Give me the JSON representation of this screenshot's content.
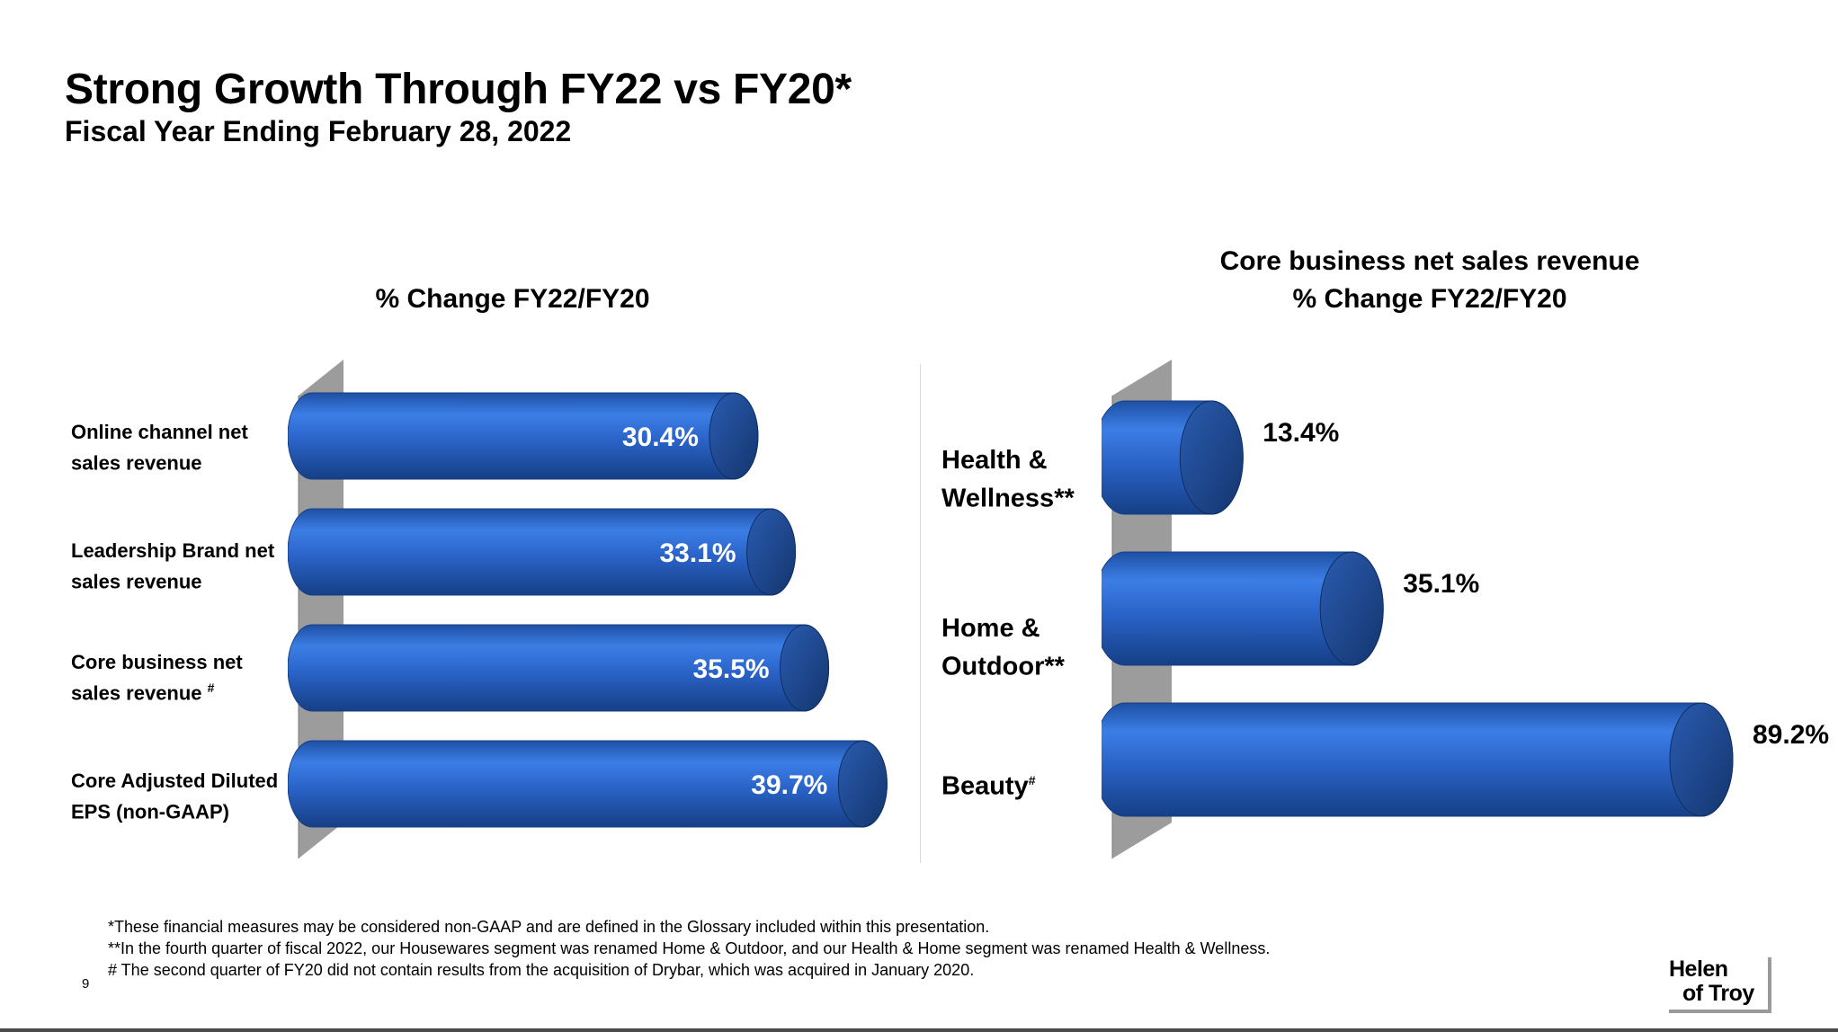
{
  "slide": {
    "title": "Strong Growth Through FY22 vs FY20*",
    "subtitle": "Fiscal Year Ending February 28, 2022",
    "page_number": "9"
  },
  "colors": {
    "bar": "#2f6fd6",
    "bar_dark": "#1c4a94",
    "wall": "#9c9c9c"
  },
  "left_chart": {
    "heading": "% Change FY22/FY20",
    "labels": [
      {
        "lines": [
          "Online channel net",
          "sales revenue"
        ],
        "sup": ""
      },
      {
        "lines": [
          "Leadership Brand net",
          "sales revenue"
        ],
        "sup": ""
      },
      {
        "lines": [
          "Core business net",
          "sales revenue"
        ],
        "sup": "#"
      },
      {
        "lines": [
          "Core Adjusted Diluted",
          "EPS (non-GAAP)"
        ],
        "sup": ""
      }
    ]
  },
  "right_chart": {
    "heading_line1": "Core business net sales revenue",
    "heading_line2": "% Change FY22/FY20",
    "labels": [
      {
        "lines": [
          "Health &",
          "Wellness**"
        ],
        "sup": ""
      },
      {
        "lines": [
          "Home &",
          "Outdoor**"
        ],
        "sup": ""
      },
      {
        "lines": [
          "Beauty"
        ],
        "sup": "#"
      }
    ]
  },
  "chart_data": [
    {
      "type": "bar",
      "title": "% Change FY22/FY20",
      "categories": [
        "Online channel net sales revenue",
        "Leadership Brand net sales revenue",
        "Core business net sales revenue #",
        "Core Adjusted Diluted EPS (non-GAAP)"
      ],
      "values": [
        30.4,
        33.1,
        35.5,
        39.7
      ],
      "value_labels": [
        "30.4%",
        "33.1%",
        "35.5%",
        "39.7%"
      ],
      "orientation": "horizontal",
      "data_label_position": "inside-end"
    },
    {
      "type": "bar",
      "title": "Core business net sales revenue % Change FY22/FY20",
      "categories": [
        "Health & Wellness**",
        "Home & Outdoor**",
        "Beauty#"
      ],
      "values": [
        13.4,
        35.1,
        89.2
      ],
      "value_labels": [
        "13.4%",
        "35.1%",
        "89.2%"
      ],
      "orientation": "horizontal",
      "data_label_position": "outside-end"
    }
  ],
  "footnotes": [
    "*These financial measures may be considered non-GAAP and are defined in the Glossary included within this presentation.",
    "**In the fourth quarter of fiscal 2022, our Housewares segment was renamed Home & Outdoor, and our Health & Home segment was renamed Health & Wellness.",
    "# The second quarter of FY20 did not contain results from the acquisition of Drybar, which was acquired in January 2020."
  ],
  "logo": {
    "line1": "Helen",
    "line2": "of Troy"
  }
}
